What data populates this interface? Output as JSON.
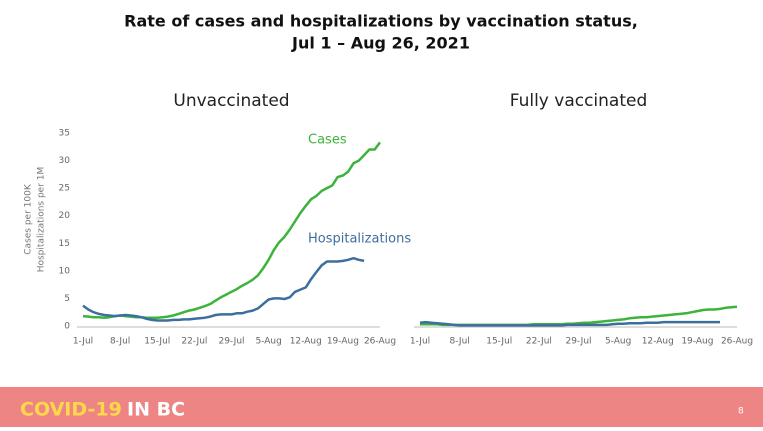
{
  "slide": {
    "title": [
      "Rate of cases and hospitalizations by vaccination status,",
      "Jul 1 – Aug 26, 2021"
    ],
    "footer": [
      "COVID-19",
      "IN BC"
    ],
    "page_number": 8
  },
  "chart_data": [
    {
      "type": "line",
      "title": "Unvaccinated",
      "ylabel": [
        "Cases per 100K",
        "Hospitalizations per 1M"
      ],
      "categories": [
        "1-Jul",
        null,
        null,
        null,
        null,
        null,
        null,
        "8-Jul",
        null,
        null,
        null,
        null,
        null,
        null,
        "15-Jul",
        null,
        null,
        null,
        null,
        null,
        null,
        "22-Jul",
        null,
        null,
        null,
        null,
        null,
        null,
        "29-Jul",
        null,
        null,
        null,
        null,
        null,
        null,
        "5-Aug",
        null,
        null,
        null,
        null,
        null,
        null,
        "12-Aug",
        null,
        null,
        null,
        null,
        null,
        null,
        "19-Aug",
        null,
        null,
        null,
        null,
        null,
        null,
        "26-Aug"
      ],
      "ylim": [
        0,
        35
      ],
      "yticks": [
        0,
        5,
        10,
        15,
        20,
        25,
        30,
        35
      ],
      "grid": false,
      "series": [
        {
          "name": "Cases",
          "color": "#3cb43c",
          "values": [
            1.8,
            1.7,
            1.6,
            1.6,
            1.5,
            1.6,
            1.8,
            1.9,
            1.8,
            1.7,
            1.6,
            1.6,
            1.5,
            1.5,
            1.5,
            1.6,
            1.7,
            1.9,
            2.2,
            2.5,
            2.8,
            3.0,
            3.3,
            3.6,
            4.0,
            4.6,
            5.2,
            5.7,
            6.2,
            6.7,
            7.3,
            7.8,
            8.4,
            9.2,
            10.5,
            12.0,
            13.8,
            15.2,
            16.2,
            17.5,
            19.0,
            20.5,
            21.8,
            23.0,
            23.6,
            24.5,
            25.0,
            25.5,
            27.0,
            27.3,
            28.0,
            29.5,
            30.0,
            31.0,
            32.0,
            32.0,
            33.3
          ]
        },
        {
          "name": "Hospitalizations",
          "color": "#3d6f9e",
          "values": [
            3.7,
            3.0,
            2.5,
            2.2,
            2.0,
            1.9,
            1.8,
            1.9,
            2.0,
            1.9,
            1.8,
            1.6,
            1.3,
            1.1,
            1.0,
            1.0,
            1.0,
            1.1,
            1.1,
            1.2,
            1.2,
            1.3,
            1.4,
            1.5,
            1.7,
            2.0,
            2.1,
            2.1,
            2.1,
            2.3,
            2.3,
            2.6,
            2.8,
            3.2,
            4.0,
            4.8,
            5.0,
            5.0,
            4.9,
            5.2,
            6.2,
            6.6,
            7.0,
            8.5,
            9.8,
            11.0,
            11.7,
            11.7,
            11.7,
            11.8,
            12.0,
            12.3,
            12.0,
            11.8,
            null,
            null,
            null
          ]
        }
      ]
    },
    {
      "type": "line",
      "title": "Fully vaccinated",
      "categories": [
        "1-Jul",
        null,
        null,
        null,
        null,
        null,
        null,
        "8-Jul",
        null,
        null,
        null,
        null,
        null,
        null,
        "15-Jul",
        null,
        null,
        null,
        null,
        null,
        null,
        "22-Jul",
        null,
        null,
        null,
        null,
        null,
        null,
        "29-Jul",
        null,
        null,
        null,
        null,
        null,
        null,
        "5-Aug",
        null,
        null,
        null,
        null,
        null,
        null,
        "12-Aug",
        null,
        null,
        null,
        null,
        null,
        null,
        "19-Aug",
        null,
        null,
        null,
        null,
        null,
        null,
        "26-Aug"
      ],
      "ylim": [
        0,
        35
      ],
      "grid": false,
      "series": [
        {
          "color": "#3cb43c",
          "values": [
            0.3,
            0.3,
            0.3,
            0.3,
            0.2,
            0.2,
            0.2,
            0.2,
            0.2,
            0.2,
            0.2,
            0.2,
            0.2,
            0.2,
            0.2,
            0.2,
            0.2,
            0.2,
            0.2,
            0.2,
            0.3,
            0.3,
            0.3,
            0.3,
            0.3,
            0.3,
            0.4,
            0.4,
            0.5,
            0.6,
            0.6,
            0.7,
            0.8,
            0.9,
            1.0,
            1.1,
            1.2,
            1.4,
            1.5,
            1.6,
            1.6,
            1.7,
            1.8,
            1.9,
            2.0,
            2.1,
            2.2,
            2.3,
            2.5,
            2.7,
            2.9,
            3.0,
            3.0,
            3.1,
            3.3,
            3.4,
            3.5
          ]
        },
        {
          "color": "#3d6f9e",
          "values": [
            0.6,
            0.7,
            0.6,
            0.5,
            0.4,
            0.3,
            0.2,
            0.1,
            0.1,
            0.1,
            0.1,
            0.1,
            0.1,
            0.1,
            0.1,
            0.1,
            0.1,
            0.1,
            0.1,
            0.1,
            0.1,
            0.1,
            0.1,
            0.1,
            0.1,
            0.1,
            0.2,
            0.2,
            0.2,
            0.2,
            0.2,
            0.2,
            0.2,
            0.2,
            0.3,
            0.4,
            0.4,
            0.5,
            0.5,
            0.5,
            0.6,
            0.6,
            0.6,
            0.7,
            0.7,
            0.7,
            0.7,
            0.7,
            0.7,
            0.7,
            0.7,
            0.7,
            0.7,
            0.7,
            null,
            null,
            null
          ]
        }
      ]
    }
  ]
}
